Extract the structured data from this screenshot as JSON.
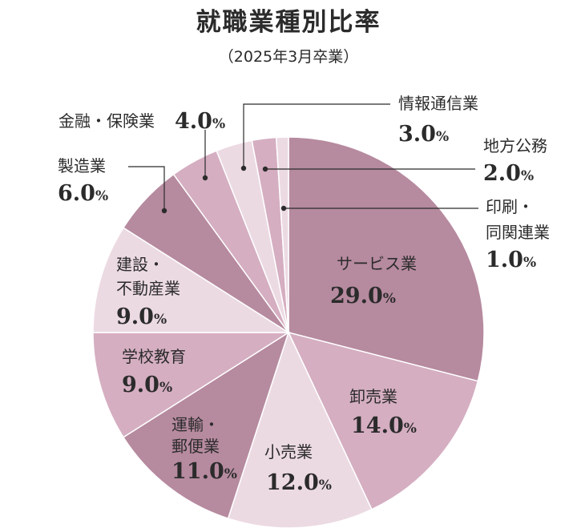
{
  "title": "就職業種別比率",
  "subtitle": "（2025年3月卒業）",
  "chart_data": {
    "type": "pie",
    "unit": "%",
    "slices": [
      {
        "label": "サービス業",
        "value": 29.0,
        "color": "#b68a9f"
      },
      {
        "label": "卸売業",
        "value": 14.0,
        "color": "#d5aec1"
      },
      {
        "label": "小売業",
        "value": 12.0,
        "color": "#ecdae3"
      },
      {
        "label": "運輸・郵便業",
        "value": 11.0,
        "color": "#b68a9f"
      },
      {
        "label": "学校教育",
        "value": 9.0,
        "color": "#d5aec1"
      },
      {
        "label": "建設・不動産業",
        "value": 9.0,
        "color": "#ecdae3"
      },
      {
        "label": "製造業",
        "value": 6.0,
        "color": "#b68a9f"
      },
      {
        "label": "金融・保険業",
        "value": 4.0,
        "color": "#d5aec1"
      },
      {
        "label": "情報通信業",
        "value": 3.0,
        "color": "#ecdae3"
      },
      {
        "label": "地方公務",
        "value": 2.0,
        "color": "#d5aec1"
      },
      {
        "label": "印刷・同関連業",
        "value": 1.0,
        "color": "#ecdae3"
      }
    ]
  }
}
